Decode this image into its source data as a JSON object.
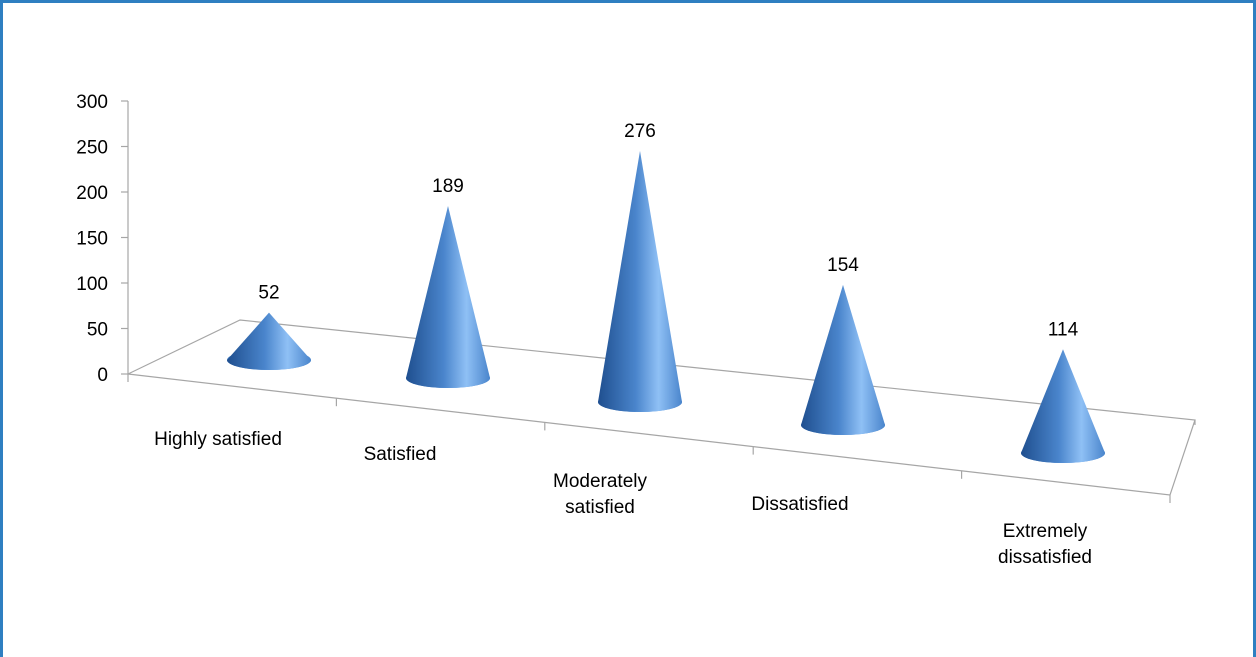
{
  "chart_data": {
    "type": "bar",
    "style": "3d-cone",
    "categories": [
      [
        "Highly satisfied"
      ],
      [
        "Satisfied"
      ],
      [
        "Moderately",
        "satisfied"
      ],
      [
        "Dissatisfied"
      ],
      [
        "Extremely",
        "dissatisfied"
      ]
    ],
    "values": [
      52,
      189,
      276,
      154,
      114
    ],
    "data_labels": [
      "52",
      "189",
      "276",
      "154",
      "114"
    ],
    "ylim": [
      0,
      300
    ],
    "yticks": [
      0,
      50,
      100,
      150,
      200,
      250,
      300
    ],
    "ytick_labels": [
      "0",
      "50",
      "100",
      "150",
      "200",
      "250",
      "300"
    ],
    "legend": "none",
    "gridlines": false,
    "colors": {
      "cone_dark": "#1f4f8f",
      "cone_mid": "#4a85cc",
      "cone_light": "#8fc0f5",
      "axis": "#a6a6a6",
      "frame": "#2f7fc1"
    }
  }
}
